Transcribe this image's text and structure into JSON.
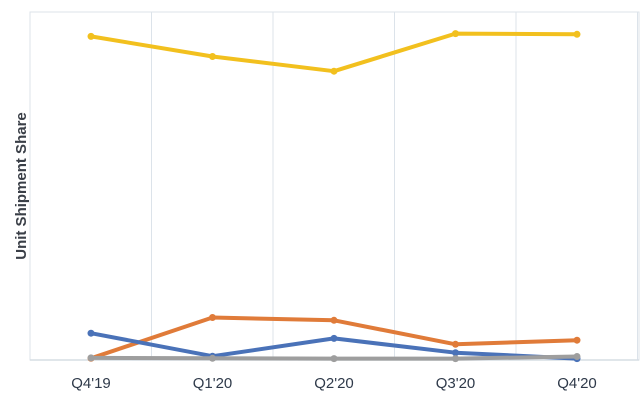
{
  "chart_data": {
    "type": "line",
    "title": "",
    "xlabel": "",
    "ylabel": "Unit Shipment Share",
    "categories": [
      "Q4'19",
      "Q1'20",
      "Q2'20",
      "Q3'20",
      "Q4'20"
    ],
    "ylim": [
      0,
      1
    ],
    "grid": "vertical",
    "legend": "none",
    "series": [
      {
        "color": "#f2c01e",
        "values": [
          0.93,
          0.872,
          0.83,
          0.938,
          0.936
        ]
      },
      {
        "color": "#e07b39",
        "values": [
          0.005,
          0.122,
          0.114,
          0.045,
          0.057
        ]
      },
      {
        "color": "#4a72b8",
        "values": [
          0.077,
          0.011,
          0.062,
          0.021,
          0.004
        ]
      },
      {
        "color": "#9e9e9e",
        "values": [
          0.006,
          0.005,
          0.004,
          0.004,
          0.01
        ]
      }
    ]
  }
}
